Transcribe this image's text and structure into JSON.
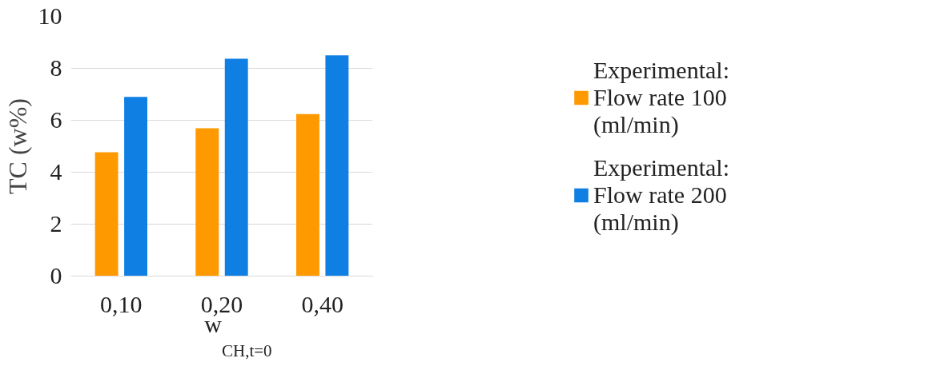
{
  "chart_data": {
    "type": "bar",
    "categories": [
      "0,10",
      "0,20",
      "0,40"
    ],
    "series": [
      {
        "name": "Experimental: Flow rate 100 (ml/min)",
        "color": "#ff9900",
        "values": [
          4.77,
          5.69,
          6.24
        ]
      },
      {
        "name": "Experimental: Flow rate 200 (ml/min)",
        "color": "#0f7fe4",
        "values": [
          6.9,
          8.37,
          8.5
        ]
      }
    ],
    "ylabel": "TC (w%)",
    "xlabel": "w$_{CH,t=0}$",
    "ylim": [
      0,
      10
    ],
    "yticks": [
      0,
      2,
      4,
      6,
      8,
      10
    ],
    "grid": "y",
    "legend": "right"
  }
}
